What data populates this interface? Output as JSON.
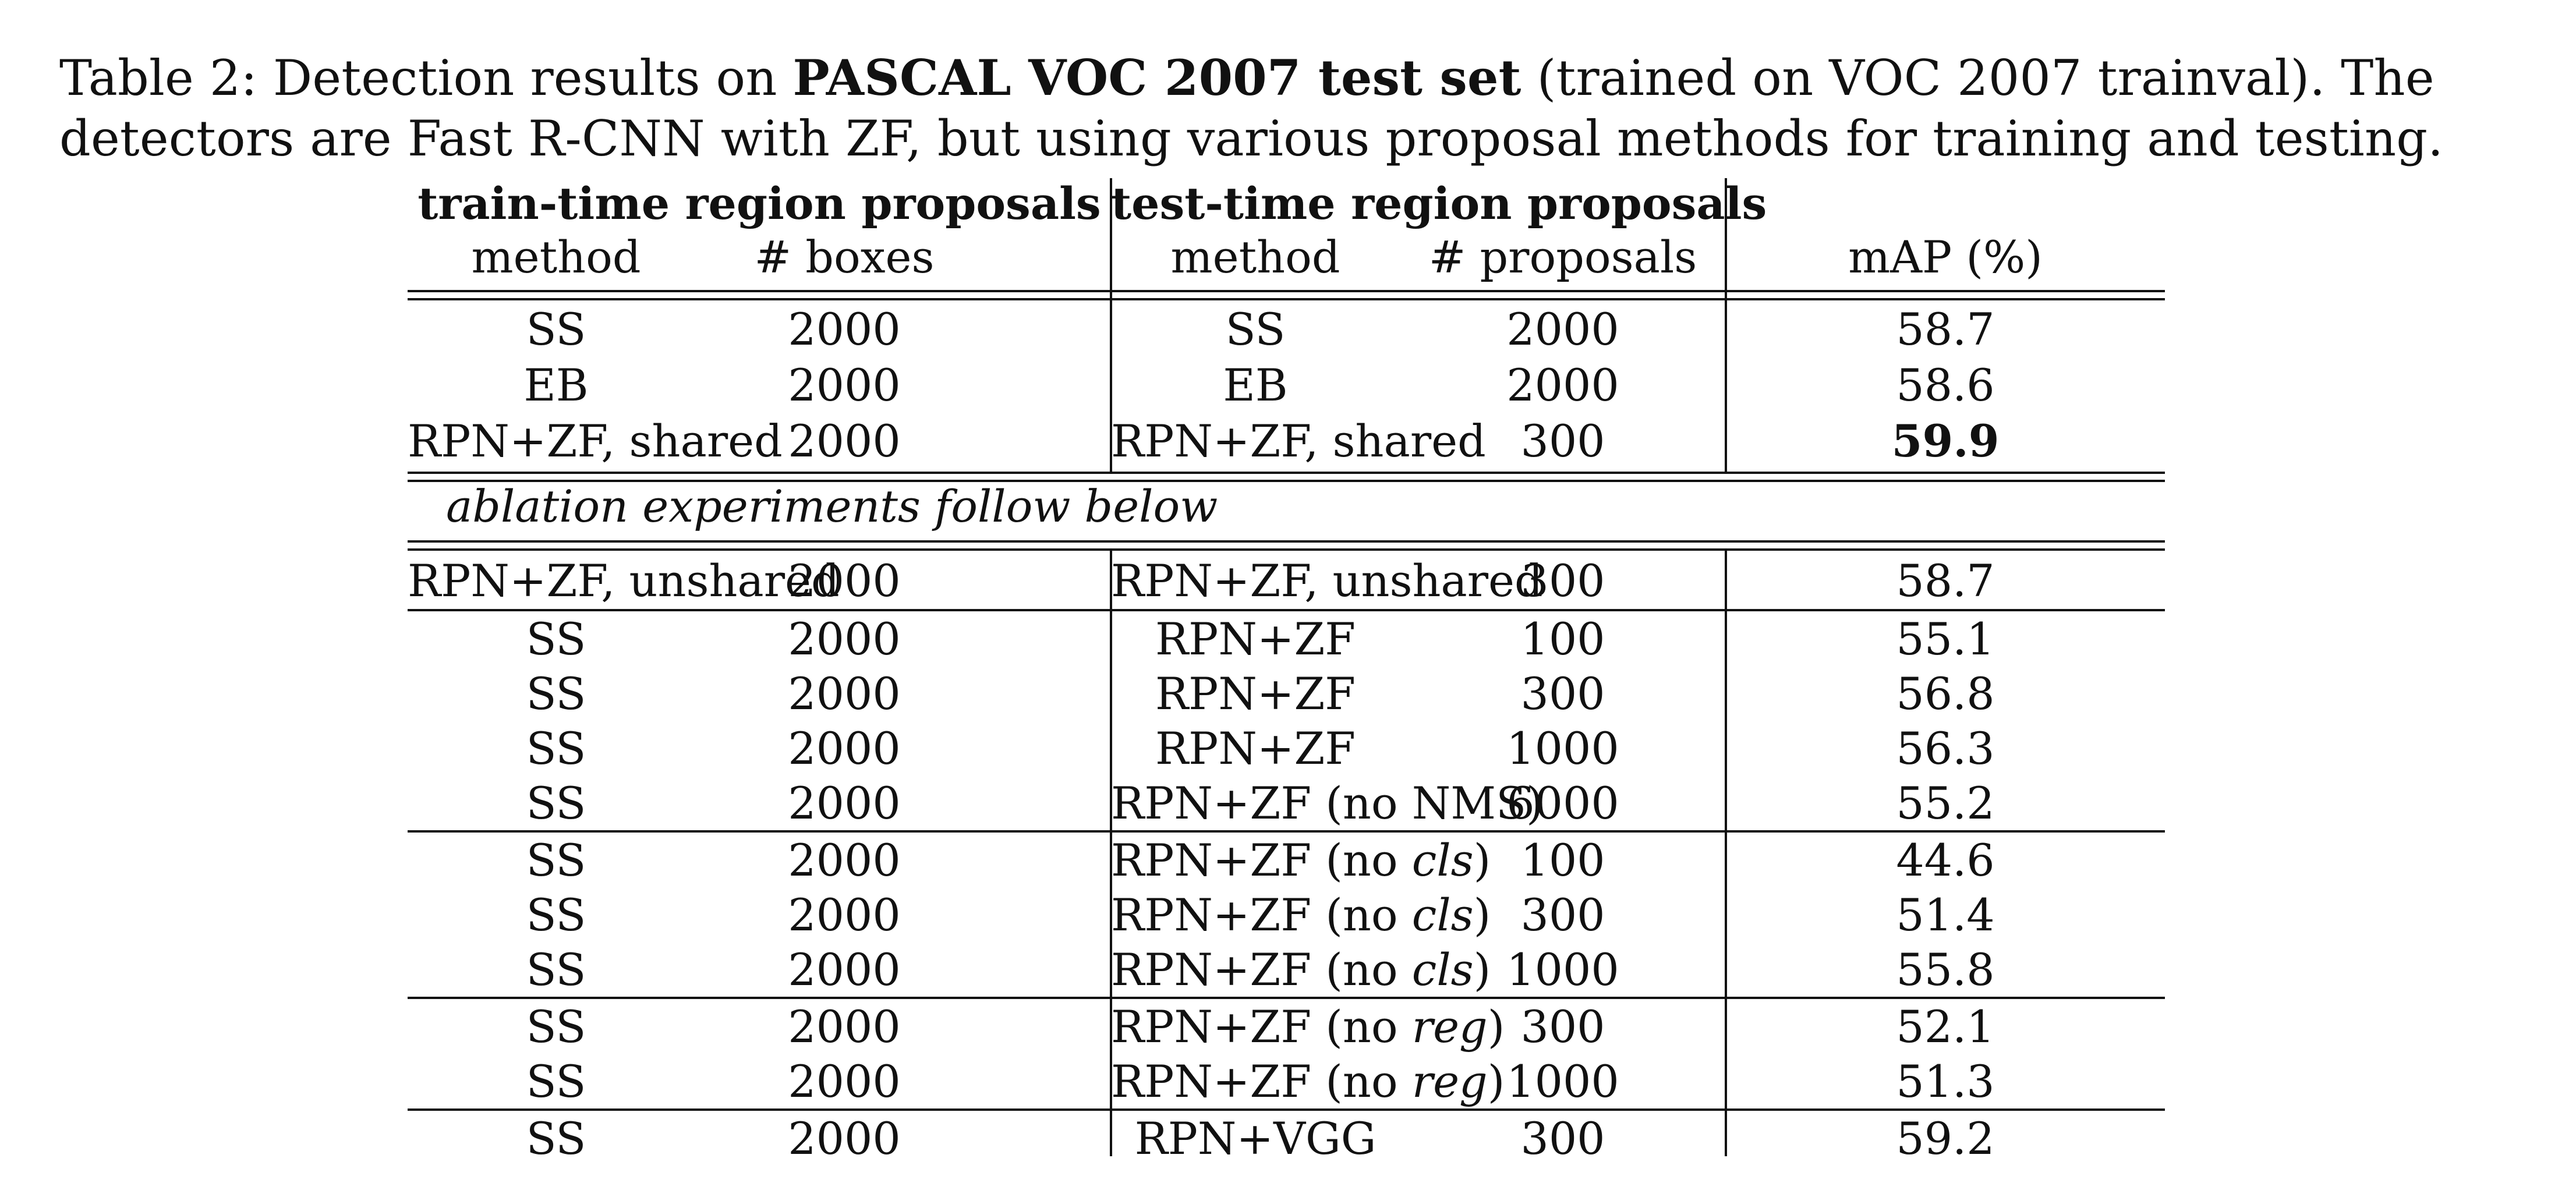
{
  "caption": {
    "label": "Table 2: Detection results on ",
    "bold": "PASCAL VOC 2007 test set",
    "rest": " (trained on VOC 2007 trainval). The detectors are Fast R-CNN with ZF, but using various proposal methods for training and testing."
  },
  "table": {
    "group_headers": {
      "train": "train-time region proposals",
      "test": "test-time region proposals"
    },
    "columns": {
      "train_method": "method",
      "train_boxes": "# boxes",
      "test_method": "method",
      "test_proposals": "# proposals",
      "map": "mAP (%)"
    },
    "ablation_note": "ablation experiments follow below",
    "rows": [
      {
        "train_method": "SS",
        "train_boxes": "2000",
        "test_method": "SS",
        "test_suffix": "",
        "test_proposals": "2000",
        "map": "58.7"
      },
      {
        "train_method": "EB",
        "train_boxes": "2000",
        "test_method": "EB",
        "test_suffix": "",
        "test_proposals": "2000",
        "map": "58.6"
      },
      {
        "train_method": "RPN+ZF, shared",
        "train_boxes": "2000",
        "test_method": "RPN+ZF, shared",
        "test_suffix": "",
        "test_proposals": "300",
        "map": "59.9"
      },
      {
        "train_method": "RPN+ZF, unshared",
        "train_boxes": "2000",
        "test_method": "RPN+ZF, unshared",
        "test_suffix": "",
        "test_proposals": "300",
        "map": "58.7"
      },
      {
        "train_method": "SS",
        "train_boxes": "2000",
        "test_method": "RPN+ZF",
        "test_suffix": "",
        "test_proposals": "100",
        "map": "55.1"
      },
      {
        "train_method": "SS",
        "train_boxes": "2000",
        "test_method": "RPN+ZF",
        "test_suffix": "",
        "test_proposals": "300",
        "map": "56.8"
      },
      {
        "train_method": "SS",
        "train_boxes": "2000",
        "test_method": "RPN+ZF",
        "test_suffix": "",
        "test_proposals": "1000",
        "map": "56.3"
      },
      {
        "train_method": "SS",
        "train_boxes": "2000",
        "test_method": "RPN+ZF (no NMS)",
        "test_suffix": "",
        "test_proposals": "6000",
        "map": "55.2"
      },
      {
        "train_method": "SS",
        "train_boxes": "2000",
        "test_method": "RPN+ZF (no ",
        "test_italic": "cls",
        "test_suffix": ")",
        "test_proposals": "100",
        "map": "44.6"
      },
      {
        "train_method": "SS",
        "train_boxes": "2000",
        "test_method": "RPN+ZF (no ",
        "test_italic": "cls",
        "test_suffix": ")",
        "test_proposals": "300",
        "map": "51.4"
      },
      {
        "train_method": "SS",
        "train_boxes": "2000",
        "test_method": "RPN+ZF (no ",
        "test_italic": "cls",
        "test_suffix": ")",
        "test_proposals": "1000",
        "map": "55.8"
      },
      {
        "train_method": "SS",
        "train_boxes": "2000",
        "test_method": "RPN+ZF (no ",
        "test_italic": "reg",
        "test_suffix": ")",
        "test_proposals": "300",
        "map": "52.1"
      },
      {
        "train_method": "SS",
        "train_boxes": "2000",
        "test_method": "RPN+ZF (no ",
        "test_italic": "reg",
        "test_suffix": ")",
        "test_proposals": "1000",
        "map": "51.3"
      },
      {
        "train_method": "SS",
        "train_boxes": "2000",
        "test_method": "RPN+VGG",
        "test_suffix": "",
        "test_proposals": "300",
        "map": "59.2"
      }
    ]
  }
}
